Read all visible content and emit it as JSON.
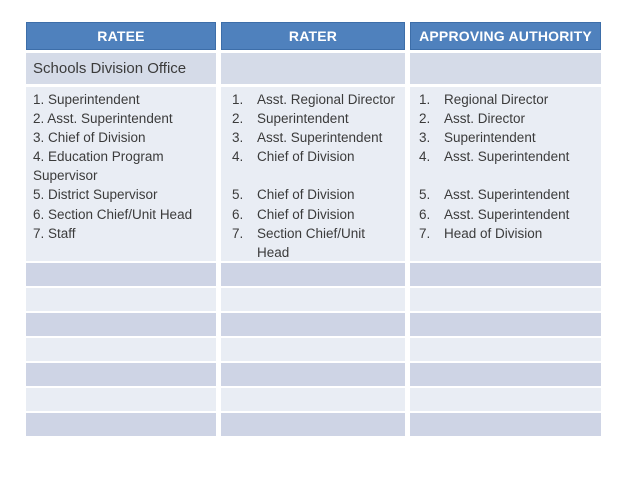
{
  "colors": {
    "header_bg": "#4F81BD",
    "header_border": "#3D6EA9",
    "header_text": "#FFFFFF",
    "section_row_bg": "#D5DBE8",
    "light_row_bg": "#E9EDF4",
    "dark_row_bg": "#CED4E5",
    "body_text": "#3B3B3B",
    "page_bg": "#FFFFFF"
  },
  "table": {
    "headers": [
      "RATEE",
      "RATER",
      "APPROVING AUTHORITY"
    ],
    "section_label": "Schools Division Office",
    "ratee_lines": [
      "1. Superintendent",
      "2. Asst. Superintendent",
      "3. Chief of Division",
      "4. Education Program",
      "Supervisor",
      "5. District Supervisor",
      "6. Section Chief/Unit Head",
      "7. Staff"
    ],
    "rater_lines": [
      {
        "num": "1.",
        "text": "Asst. Regional Director"
      },
      {
        "num": "2.",
        "text": "Superintendent"
      },
      {
        "num": "3.",
        "text": "Asst. Superintendent"
      },
      {
        "num": "4.",
        "text": "Chief of Division"
      },
      {
        "num": "",
        "text": ""
      },
      {
        "num": "5.",
        "text": "Chief of Division"
      },
      {
        "num": "6.",
        "text": "Chief of Division"
      },
      {
        "num": "7.",
        "text": "Section Chief/Unit"
      },
      {
        "num": "",
        "text": "Head"
      }
    ],
    "approving_lines": [
      {
        "num": "1.",
        "text": "Regional Director"
      },
      {
        "num": "2.",
        "text": "Asst. Director"
      },
      {
        "num": "3.",
        "text": "Superintendent"
      },
      {
        "num": "4.",
        "text": "Asst. Superintendent"
      },
      {
        "num": "",
        "text": ""
      },
      {
        "num": "5.",
        "text": "Asst. Superintendent"
      },
      {
        "num": "6.",
        "text": "Asst. Superintendent"
      },
      {
        "num": "7.",
        "text": "Head of Division"
      }
    ],
    "empty_row_count": 7
  }
}
